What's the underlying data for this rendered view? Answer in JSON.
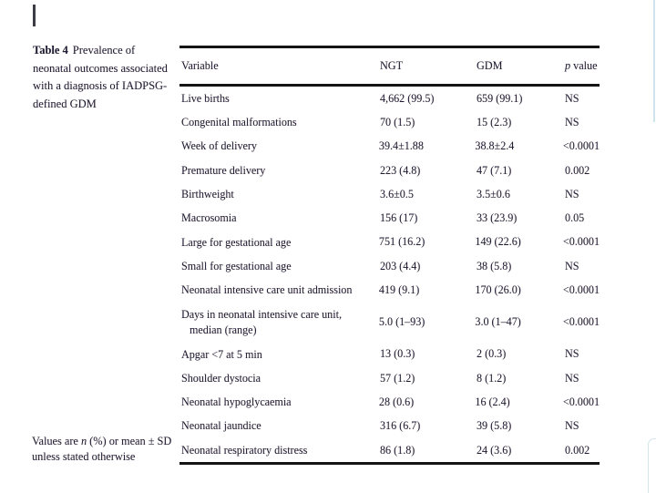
{
  "caption": {
    "label": "Table 4",
    "text": "Prevalence of neonatal outcomes associated with a diagnosis of IADPSG-defined GDM"
  },
  "footnote": {
    "before_n": "Values are ",
    "n": "n",
    "after_n": " (%) or mean ± SD unless stated otherwise"
  },
  "table": {
    "header": {
      "variable": "Variable",
      "ngt": "NGT",
      "gdm": "GDM",
      "p_italic": "p",
      "p_rest": " value"
    },
    "rows": [
      {
        "variable": "Live births",
        "ngt": "4,662 (99.5)",
        "gdm": "659 (99.1)",
        "p": "NS"
      },
      {
        "variable": "Congenital malformations",
        "ngt": "70 (1.5)",
        "gdm": "15 (2.3)",
        "p": "NS"
      },
      {
        "variable": "Week of delivery",
        "ngt": "39.4±1.88",
        "gdm": "38.8±2.4",
        "p": "<0.0001"
      },
      {
        "variable": "Premature delivery",
        "ngt": "223 (4.8)",
        "gdm": "47 (7.1)",
        "p": "0.002"
      },
      {
        "variable": "Birthweight",
        "ngt": "3.6±0.5",
        "gdm": "3.5±0.6",
        "p": "NS"
      },
      {
        "variable": "Macrosomia",
        "ngt": "156 (17)",
        "gdm": "33 (23.9)",
        "p": "0.05"
      },
      {
        "variable": "Large for gestational age",
        "ngt": "751 (16.2)",
        "gdm": "149 (22.6)",
        "p": "<0.0001"
      },
      {
        "variable": "Small for gestational age",
        "ngt": "203 (4.4)",
        "gdm": "38 (5.8)",
        "p": "NS"
      },
      {
        "variable": "Neonatal intensive care unit admission",
        "ngt": "419 (9.1)",
        "gdm": "170 (26.0)",
        "p": "<0.0001"
      },
      {
        "variable": "Days in neonatal intensive care unit,",
        "variable_line2": "median (range)",
        "ngt": "5.0 (1–93)",
        "gdm": "3.0 (1–47)",
        "p": "<0.0001"
      },
      {
        "variable": "Apgar <7 at 5 min",
        "ngt": "13 (0.3)",
        "gdm": "2 (0.3)",
        "p": "NS"
      },
      {
        "variable": "Shoulder dystocia",
        "ngt": "57 (1.2)",
        "gdm": "8 (1.2)",
        "p": "NS"
      },
      {
        "variable": "Neonatal hypoglycaemia",
        "ngt": "28 (0.6)",
        "gdm": "16 (2.4)",
        "p": "<0.0001"
      },
      {
        "variable": "Neonatal jaundice",
        "ngt": "316 (6.7)",
        "gdm": "39 (5.8)",
        "p": "NS"
      },
      {
        "variable": "Neonatal respiratory distress",
        "ngt": "86 (1.8)",
        "gdm": "24 (3.6)",
        "p": "0.002"
      }
    ]
  },
  "colors": {
    "text": "#1d1d33",
    "rule": "#141414",
    "edge_line": "#cfe4ec"
  }
}
